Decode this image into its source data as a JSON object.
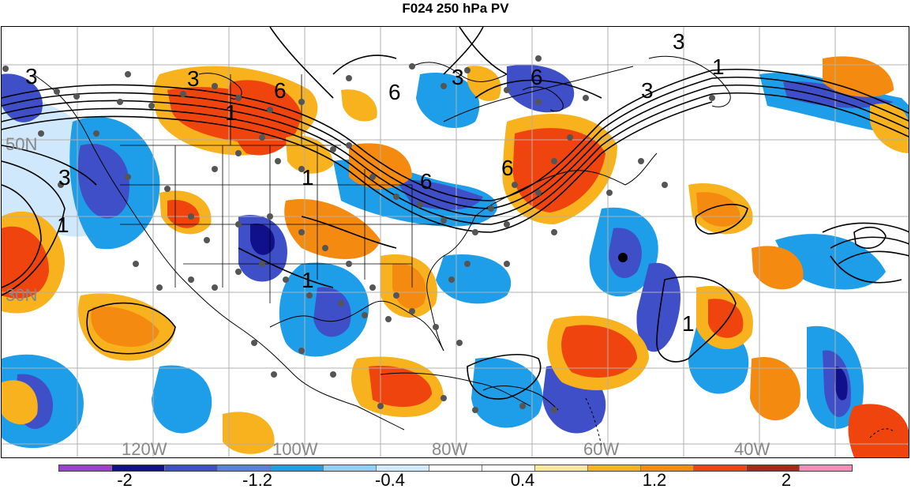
{
  "title": "F024 250 hPa PV",
  "map": {
    "latitude_labels": [
      "50N",
      "30N"
    ],
    "longitude_labels": [
      "120W",
      "100W",
      "80W",
      "60W",
      "40W"
    ],
    "contour_labels": [
      "3",
      "3",
      "6",
      "6",
      "1",
      "6",
      "1",
      "6",
      "6",
      "3",
      "3",
      "3",
      "1",
      "3",
      "1",
      "1",
      "1"
    ]
  },
  "colorbar": {
    "colors": [
      "#9a3fd1",
      "#10108a",
      "#3e4fc8",
      "#5a7fe0",
      "#1e9ee8",
      "#8fcff2",
      "#cfe8fb",
      "#ffffff",
      "#ffffff",
      "#f8e69a",
      "#f7b21d",
      "#f58a10",
      "#f0440f",
      "#a52818",
      "#f58bb6"
    ],
    "tick_labels": [
      "-2",
      "-1.2",
      "-0.4",
      "0.4",
      "1.2",
      "2"
    ]
  }
}
